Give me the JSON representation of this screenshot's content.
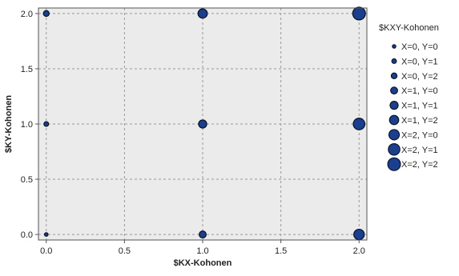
{
  "chart_data": {
    "type": "scatter",
    "title": "",
    "xlabel": "$KX-Kohonen",
    "ylabel": "$KY-Kohonen",
    "xlim": [
      -0.05,
      2.05
    ],
    "ylim": [
      -0.05,
      2.05
    ],
    "x_ticks": [
      "0.0",
      "0.5",
      "1.0",
      "1.5",
      "2.0"
    ],
    "y_ticks": [
      "0.0",
      "0.5",
      "1.0",
      "1.5",
      "2.0"
    ],
    "grid": true,
    "legend_position": "right",
    "legend_title": "$KXY-Kohonen",
    "marker_color": "#1a3f8f",
    "marker_edge_color": "#0a1020",
    "plot_background": "#ebebeb",
    "series": [
      {
        "name": "X=0, Y=0",
        "x": 0,
        "y": 0,
        "size_rank": 1
      },
      {
        "name": "X=0, Y=1",
        "x": 0,
        "y": 1,
        "size_rank": 2
      },
      {
        "name": "X=0, Y=2",
        "x": 0,
        "y": 2,
        "size_rank": 3
      },
      {
        "name": "X=1, Y=0",
        "x": 1,
        "y": 0,
        "size_rank": 4
      },
      {
        "name": "X=1, Y=1",
        "x": 1,
        "y": 1,
        "size_rank": 5
      },
      {
        "name": "X=1, Y=2",
        "x": 1,
        "y": 2,
        "size_rank": 6
      },
      {
        "name": "X=2, Y=0",
        "x": 2,
        "y": 0,
        "size_rank": 7
      },
      {
        "name": "X=2, Y=1",
        "x": 2,
        "y": 1,
        "size_rank": 8
      },
      {
        "name": "X=2, Y=2",
        "x": 2,
        "y": 2,
        "size_rank": 9
      }
    ]
  }
}
